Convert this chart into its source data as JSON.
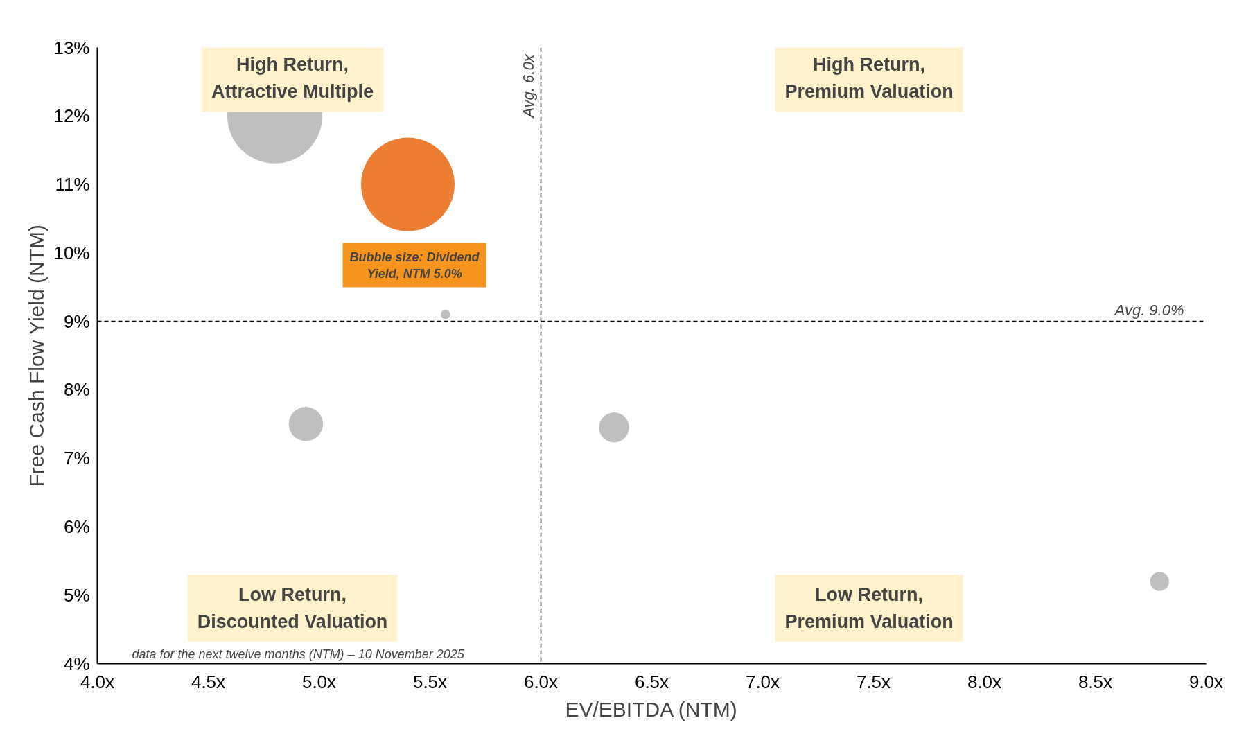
{
  "chart_data": {
    "type": "bubble",
    "xlabel": "EV/EBITDA (NTM)",
    "ylabel": "Free Cash Flow Yield (NTM)",
    "x": [
      4.8,
      5.4,
      5.57,
      4.94,
      6.33,
      8.79
    ],
    "series": [
      {
        "colors": [
          "#bfbfbf",
          "#ed7d31",
          "#bfbfbf",
          "#bfbfbf",
          "#bfbfbf",
          "#bfbfbf"
        ],
        "values": [
          12.0,
          11.0,
          9.1,
          7.5,
          7.45,
          5.2
        ],
        "sizes": [
          1,
          0.97,
          0.01,
          0.13,
          0.1,
          0.04
        ]
      }
    ],
    "xlim": [
      4.0,
      9.0
    ],
    "xticks": [
      {
        "value": 4.0,
        "label": "4.0x"
      },
      {
        "value": 4.5,
        "label": "4.5x"
      },
      {
        "value": 5.0,
        "label": "5.0x"
      },
      {
        "value": 5.5,
        "label": "5.5x"
      },
      {
        "value": 6.0,
        "label": "6.0x"
      },
      {
        "value": 6.5,
        "label": "6.5x"
      },
      {
        "value": 7.0,
        "label": "7.0x"
      },
      {
        "value": 7.5,
        "label": "7.5x"
      },
      {
        "value": 8.0,
        "label": "8.0x"
      },
      {
        "value": 8.5,
        "label": "8.5x"
      },
      {
        "value": 9.0,
        "label": "9.0x"
      }
    ],
    "ylim": [
      4,
      13
    ],
    "yticks": [
      {
        "value": 4,
        "label": "4%"
      },
      {
        "value": 5,
        "label": "5%"
      },
      {
        "value": 6,
        "label": "6%"
      },
      {
        "value": 7,
        "label": "7%"
      },
      {
        "value": 8,
        "label": "8%"
      },
      {
        "value": 9,
        "label": "9%"
      },
      {
        "value": 10,
        "label": "10%"
      },
      {
        "value": 11,
        "label": "11%"
      },
      {
        "value": 12,
        "label": "12%"
      },
      {
        "value": 13,
        "label": "13%"
      }
    ],
    "ref_lines": [
      {
        "axis": "x",
        "value": 6.0,
        "label": "Avg. 6.0x",
        "line_style": "dashed",
        "color": "#000000"
      },
      {
        "axis": "y",
        "value": 9.0,
        "label": "Avg. 9.0%",
        "line_style": "dashed",
        "color": "#000000"
      }
    ],
    "annotations": [
      "High Return,\nAttractive Multiple",
      "High Return,\nPremium Valuation",
      "Low Return,\nDiscounted Valuation",
      "Low Return,\nPremium Valuation",
      "Bubble size: Dividend\nYield, NTM 5.0%",
      "data for the next twelve months (NTM) – 10 November 2025"
    ],
    "grid": false
  }
}
